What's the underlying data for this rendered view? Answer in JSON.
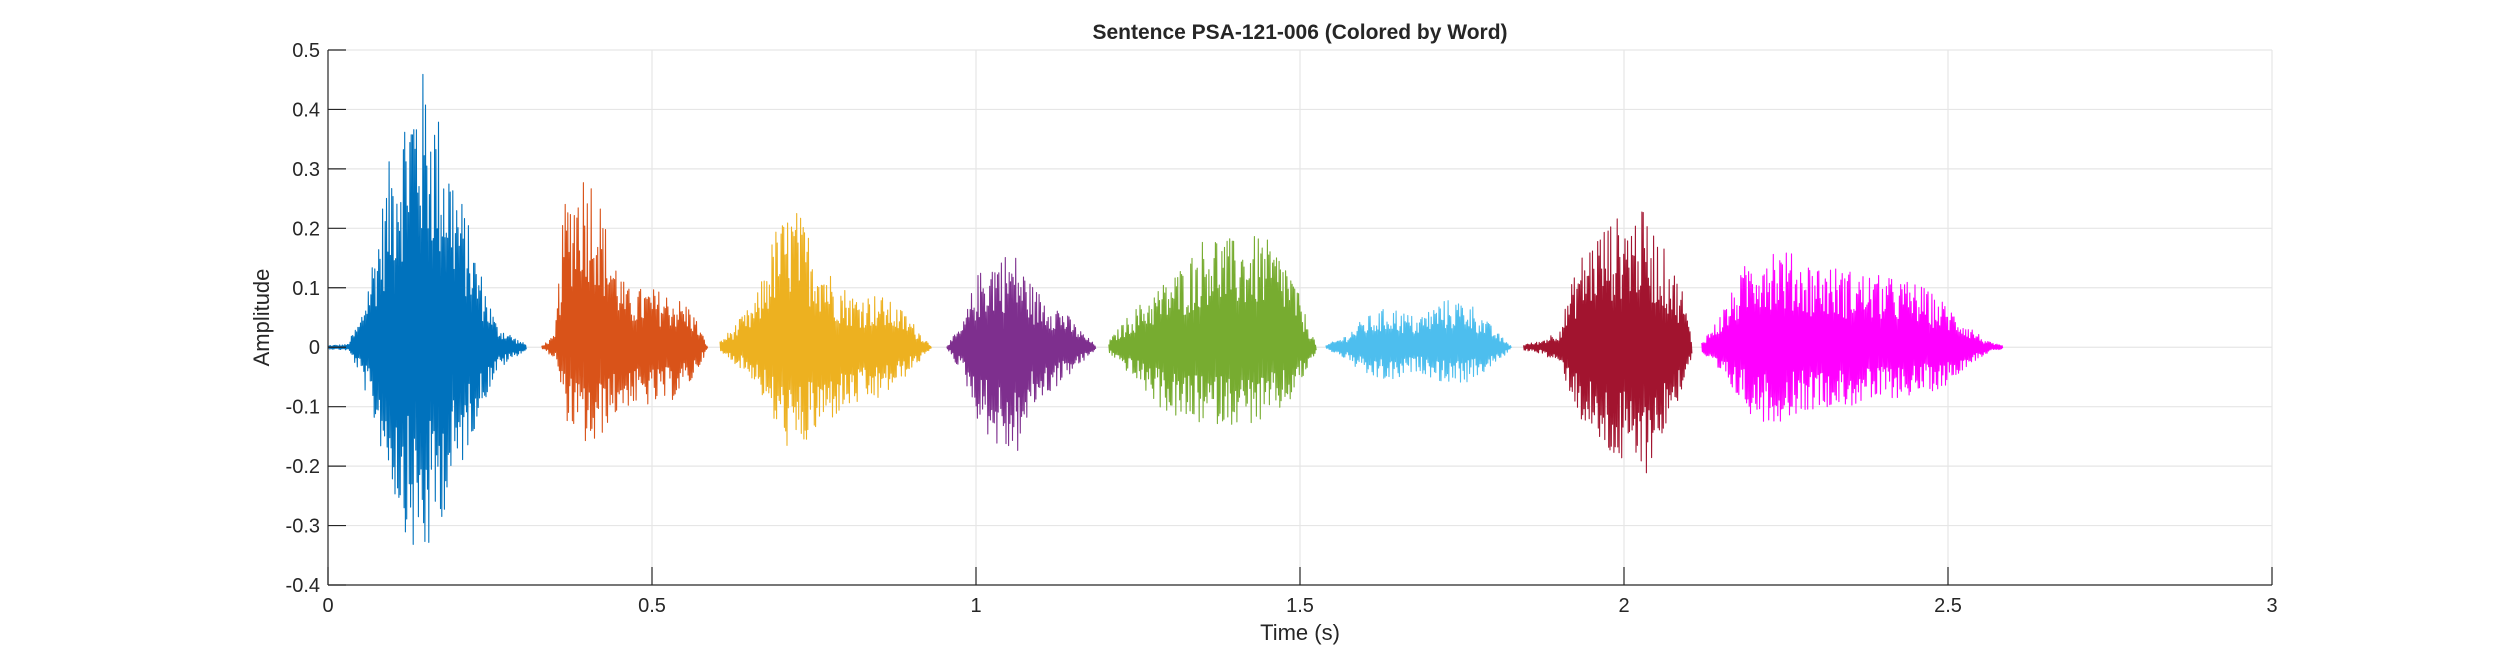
{
  "chart_data": {
    "type": "line",
    "title": "Sentence PSA-121-006 (Colored by Word)",
    "xlabel": "Time (s)",
    "ylabel": "Amplitude",
    "xlim": [
      0,
      3
    ],
    "ylim": [
      -0.4,
      0.5
    ],
    "grid": true,
    "x_ticks": [
      0,
      0.5,
      1,
      1.5,
      2,
      2.5,
      3
    ],
    "x_tick_labels": [
      "0",
      "0.5",
      "1",
      "1.5",
      "2",
      "2.5",
      "3"
    ],
    "y_ticks": [
      0.5,
      0.4,
      0.3,
      0.2,
      0.1,
      0,
      -0.1,
      -0.2,
      -0.3,
      -0.4
    ],
    "y_tick_labels": [
      "0.5",
      "0.4",
      "0.3",
      "0.2",
      "0.1",
      "0",
      "-0.1",
      "-0.2",
      "-0.3",
      "-0.4"
    ],
    "series": [
      {
        "color": "#0072BD",
        "x_range": [
          0.0,
          0.305
        ],
        "envelope": [
          [
            0.0,
            0.003,
            -0.003
          ],
          [
            0.03,
            0.005,
            -0.005
          ],
          [
            0.05,
            0.05,
            -0.05
          ],
          [
            0.08,
            0.22,
            -0.17
          ],
          [
            0.1,
            0.35,
            -0.25
          ],
          [
            0.13,
            0.46,
            -0.35
          ],
          [
            0.15,
            0.47,
            -0.37
          ],
          [
            0.17,
            0.4,
            -0.3
          ],
          [
            0.2,
            0.28,
            -0.22
          ],
          [
            0.23,
            0.15,
            -0.12
          ],
          [
            0.26,
            0.04,
            -0.04
          ],
          [
            0.29,
            0.015,
            -0.015
          ],
          [
            0.305,
            0.005,
            -0.005
          ]
        ]
      },
      {
        "color": "#D95319",
        "x_range": [
          0.33,
          0.585
        ],
        "envelope": [
          [
            0.33,
            0.003,
            -0.003
          ],
          [
            0.35,
            0.02,
            -0.02
          ],
          [
            0.365,
            0.25,
            -0.12
          ],
          [
            0.39,
            0.31,
            -0.16
          ],
          [
            0.41,
            0.3,
            -0.18
          ],
          [
            0.43,
            0.2,
            -0.13
          ],
          [
            0.46,
            0.1,
            -0.1
          ],
          [
            0.5,
            0.1,
            -0.1
          ],
          [
            0.53,
            0.09,
            -0.09
          ],
          [
            0.56,
            0.07,
            -0.06
          ],
          [
            0.585,
            0.003,
            -0.003
          ]
        ]
      },
      {
        "color": "#EDB120",
        "x_range": [
          0.605,
          0.93
        ],
        "envelope": [
          [
            0.605,
            0.01,
            -0.01
          ],
          [
            0.63,
            0.04,
            -0.03
          ],
          [
            0.66,
            0.08,
            -0.06
          ],
          [
            0.69,
            0.2,
            -0.14
          ],
          [
            0.72,
            0.24,
            -0.19
          ],
          [
            0.75,
            0.18,
            -0.15
          ],
          [
            0.78,
            0.12,
            -0.12
          ],
          [
            0.81,
            0.09,
            -0.1
          ],
          [
            0.85,
            0.09,
            -0.09
          ],
          [
            0.89,
            0.06,
            -0.05
          ],
          [
            0.93,
            0.003,
            -0.003
          ]
        ]
      },
      {
        "color": "#7E2F8E",
        "x_range": [
          0.955,
          1.185
        ],
        "envelope": [
          [
            0.955,
            0.003,
            -0.003
          ],
          [
            0.98,
            0.04,
            -0.05
          ],
          [
            1.0,
            0.12,
            -0.12
          ],
          [
            1.03,
            0.16,
            -0.17
          ],
          [
            1.06,
            0.16,
            -0.19
          ],
          [
            1.09,
            0.1,
            -0.1
          ],
          [
            1.13,
            0.07,
            -0.06
          ],
          [
            1.16,
            0.03,
            -0.03
          ],
          [
            1.185,
            0.003,
            -0.003
          ]
        ]
      },
      {
        "color": "#77AC30",
        "x_range": [
          1.205,
          1.525
        ],
        "envelope": [
          [
            1.205,
            0.01,
            -0.01
          ],
          [
            1.24,
            0.06,
            -0.05
          ],
          [
            1.28,
            0.1,
            -0.1
          ],
          [
            1.32,
            0.14,
            -0.13
          ],
          [
            1.36,
            0.2,
            -0.13
          ],
          [
            1.4,
            0.18,
            -0.13
          ],
          [
            1.44,
            0.19,
            -0.13
          ],
          [
            1.48,
            0.15,
            -0.1
          ],
          [
            1.51,
            0.05,
            -0.04
          ],
          [
            1.525,
            0.005,
            -0.005
          ]
        ]
      },
      {
        "color": "#4DBEEE",
        "x_range": [
          1.54,
          1.825
        ],
        "envelope": [
          [
            1.54,
            0.003,
            -0.003
          ],
          [
            1.57,
            0.02,
            -0.02
          ],
          [
            1.6,
            0.05,
            -0.05
          ],
          [
            1.64,
            0.07,
            -0.06
          ],
          [
            1.68,
            0.05,
            -0.04
          ],
          [
            1.72,
            0.08,
            -0.06
          ],
          [
            1.76,
            0.08,
            -0.06
          ],
          [
            1.8,
            0.03,
            -0.03
          ],
          [
            1.825,
            0.003,
            -0.003
          ]
        ]
      },
      {
        "color": "#A2142F",
        "x_range": [
          1.845,
          2.105
        ],
        "envelope": [
          [
            1.845,
            0.005,
            -0.005
          ],
          [
            1.87,
            0.01,
            -0.01
          ],
          [
            1.9,
            0.03,
            -0.03
          ],
          [
            1.93,
            0.15,
            -0.12
          ],
          [
            1.96,
            0.2,
            -0.17
          ],
          [
            1.99,
            0.22,
            -0.2
          ],
          [
            2.03,
            0.23,
            -0.22
          ],
          [
            2.06,
            0.17,
            -0.15
          ],
          [
            2.09,
            0.1,
            -0.07
          ],
          [
            2.105,
            0.01,
            -0.01
          ]
        ]
      },
      {
        "color": "#FF00FF",
        "x_range": [
          2.12,
          2.585
        ],
        "envelope": [
          [
            2.12,
            0.01,
            -0.01
          ],
          [
            2.14,
            0.04,
            -0.04
          ],
          [
            2.17,
            0.1,
            -0.08
          ],
          [
            2.2,
            0.17,
            -0.12
          ],
          [
            2.23,
            0.18,
            -0.13
          ],
          [
            2.27,
            0.15,
            -0.11
          ],
          [
            2.31,
            0.14,
            -0.1
          ],
          [
            2.35,
            0.13,
            -0.1
          ],
          [
            2.4,
            0.12,
            -0.09
          ],
          [
            2.45,
            0.11,
            -0.08
          ],
          [
            2.49,
            0.08,
            -0.07
          ],
          [
            2.53,
            0.04,
            -0.03
          ],
          [
            2.56,
            0.01,
            -0.01
          ],
          [
            2.585,
            0.002,
            -0.002
          ]
        ]
      }
    ]
  }
}
